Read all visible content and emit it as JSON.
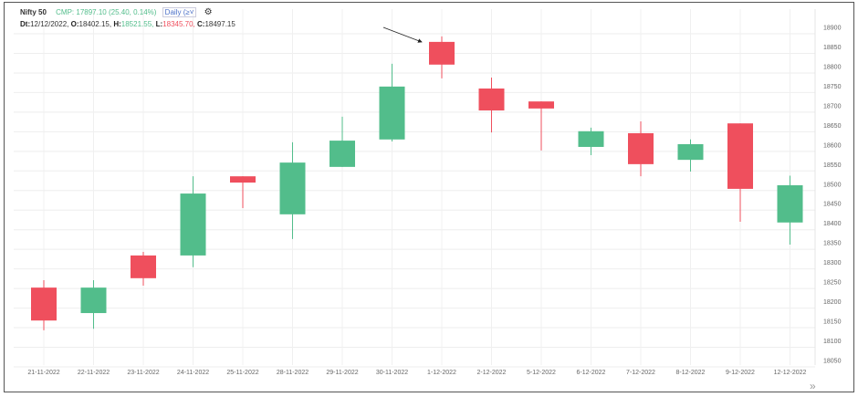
{
  "header": {
    "title": "Nifty 50",
    "cmp": "CMP: 17897.10 (25.40, 0.14%)",
    "interval": "Daily",
    "interval_suffix": "(≥˅",
    "settings_icon": "gear-icon",
    "date_label": "Dt:",
    "date": "12/12/2022,",
    "open_label": "O:",
    "open": "18402.15,",
    "high_label": "H:",
    "high": "18521.55,",
    "low_label": "L:",
    "low": "18345.70,",
    "close_label": "C:",
    "close": "18497.15"
  },
  "colors": {
    "up": "#52bd8b",
    "down": "#ef4f5d"
  },
  "scroll_icon": "double-chevron-right-icon",
  "chart_data": {
    "type": "candlestick",
    "ylim": [
      18050,
      18900
    ],
    "yticks": [
      18900,
      18850,
      18800,
      18750,
      18700,
      18650,
      18600,
      18550,
      18500,
      18450,
      18400,
      18350,
      18300,
      18250,
      18200,
      18150,
      18100,
      18050
    ],
    "grid": true,
    "categories": [
      "21-11-2022",
      "22-11-2022",
      "23-11-2022",
      "24-11-2022",
      "25-11-2022",
      "28-11-2022",
      "29-11-2022",
      "30-11-2022",
      "1-12-2022",
      "2-12-2022",
      "5-12-2022",
      "6-12-2022",
      "7-12-2022",
      "8-12-2022",
      "9-12-2022",
      "12-12-2022"
    ],
    "ohlc": [
      [
        18236,
        18255,
        18127,
        18152
      ],
      [
        18171,
        18255,
        18131,
        18236
      ],
      [
        18318,
        18327,
        18241,
        18260
      ],
      [
        18318,
        18520,
        18288,
        18476
      ],
      [
        18520,
        18520,
        18439,
        18504
      ],
      [
        18423,
        18607,
        18360,
        18555
      ],
      [
        18544,
        18672,
        18544,
        18611
      ],
      [
        18614,
        18807,
        18609,
        18749
      ],
      [
        18863,
        18877,
        18770,
        18805
      ],
      [
        18744,
        18772,
        18632,
        18688
      ],
      [
        18711,
        18711,
        18586,
        18693
      ],
      [
        18595,
        18644,
        18574,
        18635
      ],
      [
        18630,
        18660,
        18520,
        18551
      ],
      [
        18562,
        18614,
        18532,
        18602
      ],
      [
        18655,
        18655,
        18404,
        18488
      ],
      [
        18402.15,
        18521.55,
        18345.7,
        18497.15
      ]
    ],
    "annotation": "arrow pointing to 1-12-2022 candle"
  }
}
